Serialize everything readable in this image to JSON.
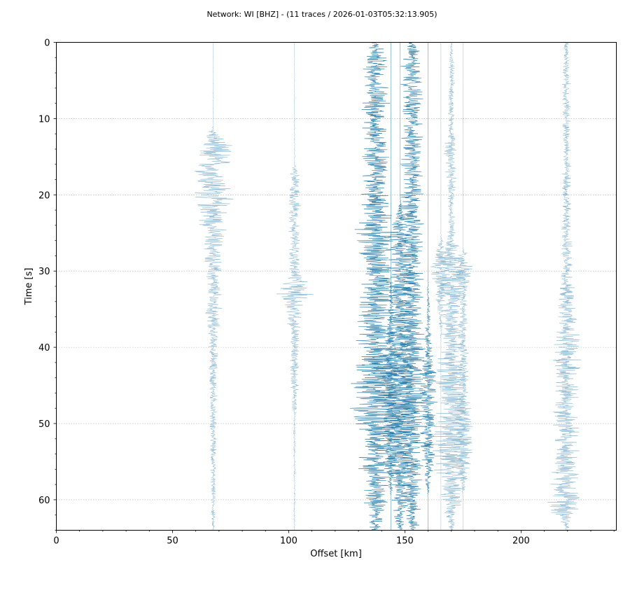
{
  "chart_data": {
    "type": "scatter",
    "title": "Network: WI [BHZ] - (11 traces / 2026-01-03T05:32:13.905)",
    "xlabel": "Offset [km]",
    "ylabel": "Time [s]",
    "xlim": [
      0,
      241
    ],
    "ylim": [
      64,
      0
    ],
    "y_inverted": true,
    "grid": "horizontal dotted",
    "x_ticks": [
      0,
      50,
      100,
      150,
      200
    ],
    "y_ticks": [
      0,
      10,
      20,
      30,
      40,
      50,
      60
    ],
    "trace_colors": [
      "#1f77a4",
      "#7fb0cc"
    ],
    "traces": [
      {
        "offset": 67.5,
        "color": "light",
        "envelope": [
          [
            0,
            0.15
          ],
          [
            2,
            0.2
          ],
          [
            11,
            0.3
          ],
          [
            12,
            3.5
          ],
          [
            14,
            10
          ],
          [
            17,
            9
          ],
          [
            20,
            10
          ],
          [
            22,
            8
          ],
          [
            25,
            6
          ],
          [
            28,
            4.5
          ],
          [
            32,
            4
          ],
          [
            36,
            4.5
          ],
          [
            38,
            2.5
          ],
          [
            45,
            2
          ],
          [
            55,
            1.5
          ],
          [
            64,
            0.8
          ]
        ]
      },
      {
        "offset": 102.5,
        "color": "light",
        "envelope": [
          [
            0,
            0.15
          ],
          [
            16,
            0.3
          ],
          [
            17,
            2.5
          ],
          [
            20,
            3
          ],
          [
            25,
            2.8
          ],
          [
            29,
            3
          ],
          [
            31,
            5
          ],
          [
            33,
            9
          ],
          [
            35,
            5
          ],
          [
            38,
            2.8
          ],
          [
            45,
            2
          ],
          [
            50,
            0.6
          ],
          [
            64,
            0.4
          ]
        ]
      },
      {
        "offset": 137.5,
        "color": "dark",
        "envelope": [
          [
            0,
            2
          ],
          [
            1,
            4.5
          ],
          [
            3,
            6.5
          ],
          [
            10,
            7
          ],
          [
            20,
            7
          ],
          [
            24,
            10
          ],
          [
            28,
            8
          ],
          [
            33,
            9
          ],
          [
            40,
            9
          ],
          [
            45,
            12
          ],
          [
            50,
            11
          ],
          [
            55,
            8
          ],
          [
            60,
            6
          ],
          [
            64,
            3
          ]
        ]
      },
      {
        "offset": 148.0,
        "color": "dark",
        "envelope": [
          [
            0,
            0
          ],
          [
            20,
            0
          ],
          [
            22,
            2
          ],
          [
            25,
            6
          ],
          [
            28,
            7
          ],
          [
            35,
            7
          ],
          [
            42,
            8
          ],
          [
            45,
            9
          ],
          [
            50,
            8
          ],
          [
            55,
            7
          ],
          [
            60,
            5
          ],
          [
            64,
            2
          ]
        ]
      },
      {
        "offset": 153.0,
        "color": "dark",
        "envelope": [
          [
            0,
            2
          ],
          [
            2,
            5
          ],
          [
            10,
            5
          ],
          [
            20,
            5.5
          ],
          [
            30,
            6
          ],
          [
            40,
            6
          ],
          [
            45,
            7
          ],
          [
            50,
            6.5
          ],
          [
            55,
            6
          ],
          [
            60,
            5
          ],
          [
            64,
            3
          ]
        ]
      },
      {
        "offset": 170.0,
        "color": "light",
        "envelope": [
          [
            0,
            0.5
          ],
          [
            3,
            1.5
          ],
          [
            12,
            1.5
          ],
          [
            14,
            4
          ],
          [
            17,
            3
          ],
          [
            20,
            1.8
          ],
          [
            26,
            2
          ],
          [
            27,
            8
          ],
          [
            30,
            9
          ],
          [
            33,
            6
          ],
          [
            40,
            5.5
          ],
          [
            45,
            8
          ],
          [
            48,
            9
          ],
          [
            52,
            10
          ],
          [
            56,
            8
          ],
          [
            60,
            5
          ],
          [
            63,
            2
          ],
          [
            64,
            1
          ]
        ]
      },
      {
        "offset": 165.5,
        "color": "light",
        "envelope": [
          [
            0,
            0
          ],
          [
            25,
            0
          ],
          [
            28,
            3
          ],
          [
            30,
            6
          ],
          [
            32,
            3
          ],
          [
            40,
            0
          ]
        ]
      },
      {
        "offset": 175.0,
        "color": "light",
        "envelope": [
          [
            0,
            0
          ],
          [
            27,
            0
          ],
          [
            28,
            3
          ],
          [
            30,
            5
          ],
          [
            33,
            2
          ],
          [
            45,
            3
          ],
          [
            50,
            5
          ],
          [
            53,
            6
          ],
          [
            56,
            3
          ],
          [
            60,
            0
          ]
        ]
      },
      {
        "offset": 219.5,
        "color": "light",
        "envelope": [
          [
            0,
            1.2
          ],
          [
            5,
            2
          ],
          [
            15,
            2.2
          ],
          [
            25,
            2.5
          ],
          [
            30,
            3
          ],
          [
            34,
            4
          ],
          [
            38,
            6
          ],
          [
            40,
            9
          ],
          [
            43,
            6
          ],
          [
            50,
            7
          ],
          [
            55,
            6
          ],
          [
            57,
            7
          ],
          [
            60,
            8
          ],
          [
            61,
            10
          ],
          [
            63,
            3
          ],
          [
            64,
            1
          ]
        ]
      },
      {
        "offset": 144.0,
        "color": "dark",
        "envelope": [
          [
            0,
            0
          ],
          [
            30,
            0
          ],
          [
            40,
            3
          ],
          [
            45,
            6
          ],
          [
            50,
            5
          ],
          [
            55,
            4
          ],
          [
            60,
            0
          ]
        ]
      },
      {
        "offset": 160.0,
        "color": "dark",
        "envelope": [
          [
            0,
            0
          ],
          [
            30,
            0
          ],
          [
            40,
            2
          ],
          [
            45,
            5
          ],
          [
            50,
            4
          ],
          [
            55,
            3
          ],
          [
            60,
            0
          ]
        ]
      }
    ]
  }
}
